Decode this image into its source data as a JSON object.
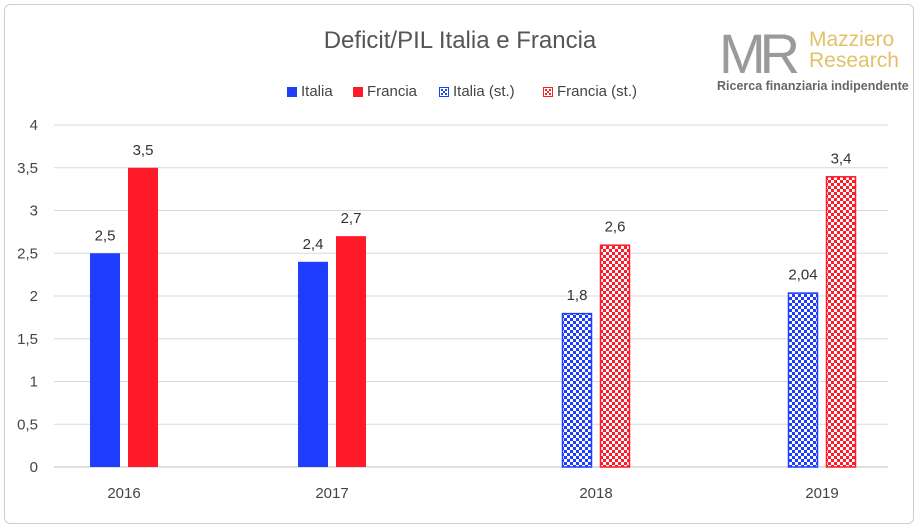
{
  "logo": {
    "mark": "MR",
    "name_line1": "Mazziero",
    "name_line2": "Research",
    "tagline": "Ricerca finanziaria indipendente"
  },
  "colors": {
    "italia": "#1f3dff",
    "francia": "#ff1a2a",
    "axis": "#d9d9d9",
    "grid": "#d9d9d9"
  },
  "chart_data": {
    "type": "bar",
    "title": "Deficit/PIL Italia e Francia",
    "categories": [
      "2016",
      "2017",
      "2018",
      "2019"
    ],
    "ylim": [
      0,
      4
    ],
    "yticks": [
      0,
      0.5,
      1,
      1.5,
      2,
      2.5,
      3,
      3.5,
      4
    ],
    "ytick_labels": [
      "0",
      "0,5",
      "1",
      "1,5",
      "2",
      "2,5",
      "3",
      "3,5",
      "4"
    ],
    "grid": true,
    "legend_position": "top",
    "series": [
      {
        "name": "Italia",
        "values": [
          2.5,
          2.4,
          null,
          null
        ],
        "labels": [
          "2,5",
          "2,4",
          "",
          ""
        ],
        "color": "#1f3dff",
        "pattern": "solid"
      },
      {
        "name": "Francia",
        "values": [
          3.5,
          2.7,
          null,
          null
        ],
        "labels": [
          "3,5",
          "2,7",
          "",
          ""
        ],
        "color": "#ff1a2a",
        "pattern": "solid"
      },
      {
        "name": "Italia (st.)",
        "values": [
          null,
          null,
          1.8,
          2.04
        ],
        "labels": [
          "",
          "",
          "1,8",
          "2,04"
        ],
        "color": "#1f3dff",
        "pattern": "checker"
      },
      {
        "name": "Francia (st.)",
        "values": [
          null,
          null,
          2.6,
          3.4
        ],
        "labels": [
          "",
          "",
          "2,6",
          "3,4"
        ],
        "color": "#ff1a2a",
        "pattern": "checker"
      }
    ]
  }
}
